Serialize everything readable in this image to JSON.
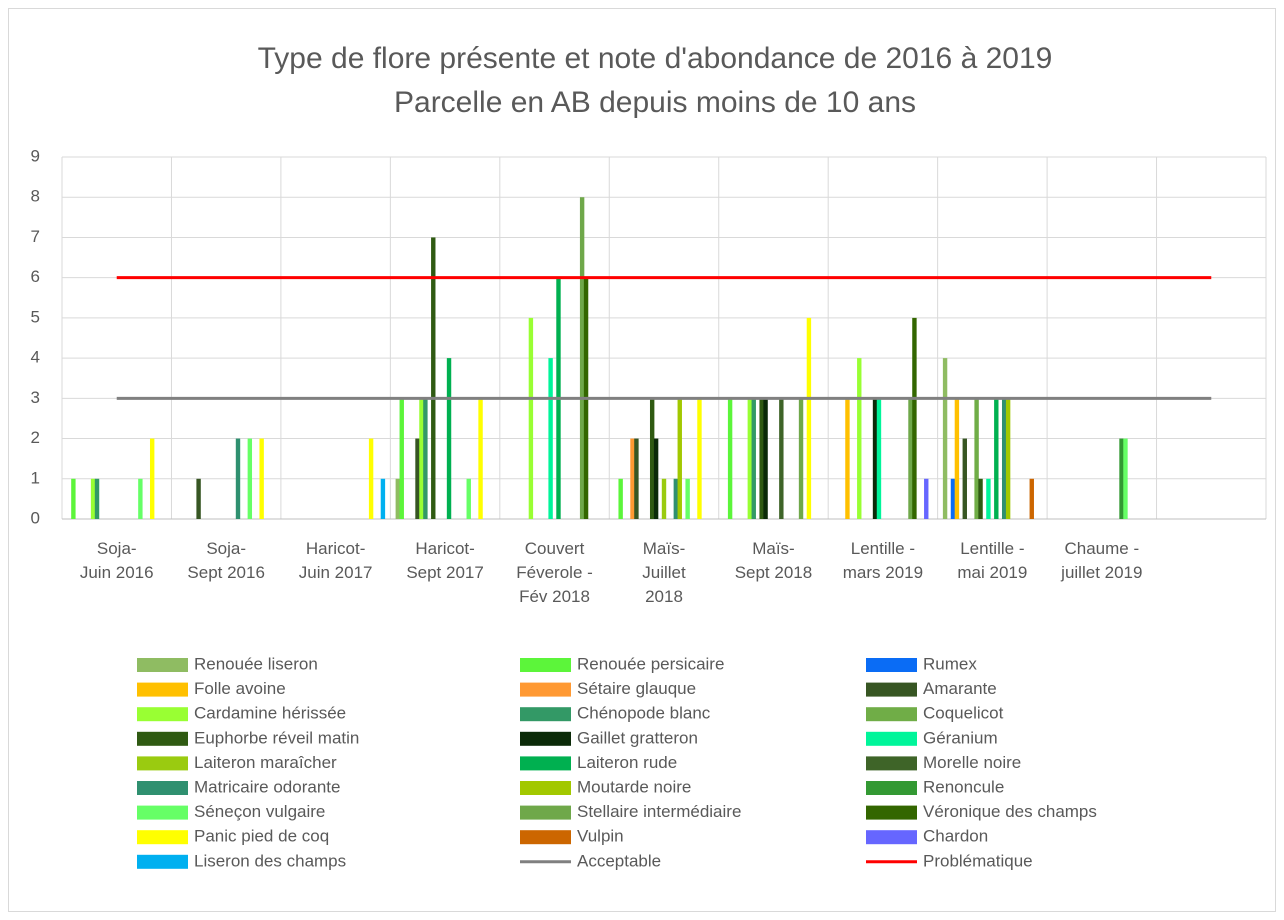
{
  "chart_data": {
    "type": "bar",
    "title": "Type de flore présente et note d'abondance de 2016 à 2019",
    "subtitle": "Parcelle en AB depuis moins de 10 ans",
    "categories": [
      "Soja-\nJuin 2016",
      "Soja-\nSept 2016",
      "Haricot-\nJuin 2017",
      "Haricot-\nSept 2017",
      "Couvert\nFéverole -\nFév 2018",
      "Maïs-\nJuillet\n2018",
      "Maïs-\nSept 2018",
      "Lentille -\nmars 2019",
      "Lentille -\nmai 2019",
      "Chaume -\njuillet 2019",
      null
    ],
    "ylim": [
      0,
      9
    ],
    "yticks": [
      0,
      1,
      2,
      3,
      4,
      5,
      6,
      7,
      8,
      9
    ],
    "grid": true,
    "legend": "bottom",
    "series": [
      {
        "name": "Renouée liseron",
        "color": "#8fbc62",
        "values": [
          0,
          0,
          0,
          1,
          0,
          0,
          0,
          0,
          4,
          0,
          null
        ]
      },
      {
        "name": "Renouée persicaire",
        "color": "#5cf53a",
        "values": [
          1,
          0,
          0,
          3,
          0,
          1,
          3,
          0,
          0,
          0,
          null
        ]
      },
      {
        "name": "Rumex",
        "color": "#0a6cf5",
        "values": [
          0,
          0,
          0,
          0,
          0,
          0,
          0,
          0,
          1,
          0,
          null
        ]
      },
      {
        "name": "Folle avoine",
        "color": "#ffc000",
        "values": [
          0,
          0,
          0,
          0,
          0,
          0,
          0,
          3,
          3,
          0,
          null
        ]
      },
      {
        "name": "Sétaire glauque",
        "color": "#ff9933",
        "values": [
          0,
          0,
          0,
          0,
          0,
          2,
          0,
          0,
          0,
          0,
          null
        ]
      },
      {
        "name": "Amarante",
        "color": "#375623",
        "values": [
          0,
          1,
          0,
          2,
          0,
          2,
          0,
          0,
          2,
          0,
          null
        ]
      },
      {
        "name": "Cardamine hérissée",
        "color": "#99ff33",
        "values": [
          1,
          0,
          0,
          3,
          5,
          0,
          3,
          4,
          0,
          0,
          null
        ]
      },
      {
        "name": "Chénopode blanc",
        "color": "#339966",
        "values": [
          1,
          0,
          0,
          3,
          0,
          0,
          3,
          0,
          0,
          0,
          null
        ]
      },
      {
        "name": "Coquelicot",
        "color": "#70ad47",
        "values": [
          0,
          0,
          0,
          0,
          0,
          0,
          0,
          0,
          3,
          0,
          null
        ]
      },
      {
        "name": "Euphorbe réveil matin",
        "color": "#2f5a12",
        "values": [
          0,
          0,
          0,
          7,
          0,
          3,
          3,
          0,
          1,
          0,
          null
        ]
      },
      {
        "name": "Gaillet gratteron",
        "color": "#0b2a08",
        "values": [
          0,
          0,
          0,
          0,
          0,
          2,
          3,
          3,
          0,
          0,
          null
        ]
      },
      {
        "name": "Géranium",
        "color": "#00f59a",
        "values": [
          0,
          0,
          0,
          0,
          4,
          0,
          0,
          3,
          1,
          0,
          null
        ]
      },
      {
        "name": "Laiteron maraîcher",
        "color": "#9acb10",
        "values": [
          0,
          0,
          0,
          0,
          0,
          1,
          0,
          0,
          0,
          0,
          null
        ]
      },
      {
        "name": "Laiteron rude",
        "color": "#00b050",
        "values": [
          0,
          0,
          0,
          4,
          6,
          0,
          0,
          0,
          3,
          0,
          null
        ]
      },
      {
        "name": "Morelle noire",
        "color": "#3e6428",
        "values": [
          0,
          0,
          0,
          0,
          0,
          0,
          3,
          0,
          0,
          0,
          null
        ]
      },
      {
        "name": "Matricaire odorante",
        "color": "#2f9070",
        "values": [
          0,
          2,
          0,
          0,
          0,
          1,
          0,
          0,
          3,
          0,
          null
        ]
      },
      {
        "name": "Moutarde noire",
        "color": "#a2c800",
        "values": [
          0,
          0,
          0,
          0,
          0,
          3,
          0,
          0,
          3,
          0,
          null
        ]
      },
      {
        "name": "Renoncule",
        "color": "#339933",
        "values": [
          0,
          0,
          0,
          0,
          0,
          0,
          0,
          0,
          0,
          2,
          null
        ]
      },
      {
        "name": "Séneçon vulgaire",
        "color": "#66ff66",
        "values": [
          1,
          2,
          0,
          1,
          0,
          1,
          0,
          0,
          0,
          2,
          null
        ]
      },
      {
        "name": "Stellaire intermédiaire",
        "color": "#6fa84a",
        "values": [
          0,
          0,
          0,
          0,
          8,
          0,
          3,
          3,
          0,
          0,
          null
        ]
      },
      {
        "name": "Véronique des champs",
        "color": "#336600",
        "values": [
          0,
          0,
          0,
          0,
          6,
          0,
          0,
          5,
          0,
          0,
          null
        ]
      },
      {
        "name": "Panic pied de coq",
        "color": "#ffff00",
        "values": [
          2,
          2,
          2,
          3,
          0,
          3,
          5,
          0,
          0,
          0,
          null
        ]
      },
      {
        "name": "Vulpin",
        "color": "#cc6600",
        "values": [
          0,
          0,
          0,
          0,
          0,
          0,
          0,
          0,
          1,
          0,
          null
        ]
      },
      {
        "name": "Chardon",
        "color": "#6666ff",
        "values": [
          0,
          0,
          0,
          0,
          0,
          0,
          0,
          1,
          0,
          0,
          null
        ]
      },
      {
        "name": "Liseron des champs",
        "color": "#00b0f0",
        "values": [
          0,
          0,
          1,
          0,
          0,
          0,
          0,
          0,
          0,
          0,
          null
        ]
      },
      {
        "name": "Acceptable",
        "type": "line",
        "color": "#808080",
        "values": [
          3,
          3,
          3,
          3,
          3,
          3,
          3,
          3,
          3,
          3,
          3
        ]
      },
      {
        "name": "Problématique",
        "type": "line",
        "color": "#ff0000",
        "values": [
          6,
          6,
          6,
          6,
          6,
          6,
          6,
          6,
          6,
          6,
          6
        ]
      }
    ]
  }
}
